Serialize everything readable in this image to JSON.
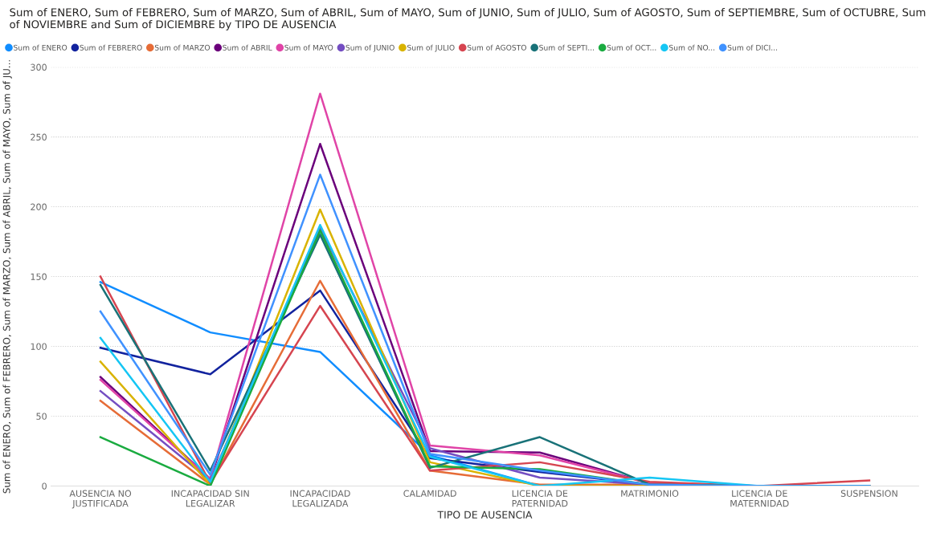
{
  "chart_data": {
    "type": "line",
    "title": "Sum of ENERO, Sum of FEBRERO, Sum of MARZO, Sum of ABRIL, Sum of MAYO, Sum of JUNIO, Sum of JULIO, Sum of AGOSTO, Sum of SEPTIEMBRE, Sum of OCTUBRE, Sum of NOVIEMBRE and Sum of DICIEMBRE by TIPO DE AUSENCIA",
    "xlabel": "TIPO DE AUSENCIA",
    "ylabel": "Sum of ENERO, Sum of FEBRERO, Sum of MARZO, Sum of ABRIL, Sum of MAYO, Sum of JU...",
    "categories": [
      "AUSENCIA NO\nJUSTIFICADA",
      "INCAPACIDAD SIN\nLEGALIZAR",
      "INCAPACIDAD\nLEGALIZADA",
      "CALAMIDAD",
      "LICENCIA DE\nPATERNIDAD",
      "MATRIMONIO",
      "LICENCIA DE\nMATERNIDAD",
      "SUSPENSION"
    ],
    "ylim": [
      0,
      300
    ],
    "yticks": [
      0,
      50,
      100,
      150,
      200,
      250,
      300
    ],
    "grid": "y",
    "legend": "top left",
    "marker": "none",
    "line_style": "solid",
    "series": [
      {
        "name": "Sum of ENERO",
        "color": "#118dff",
        "values": [
          146,
          110,
          96,
          22,
          0,
          1,
          0,
          0
        ]
      },
      {
        "name": "Sum of FEBRERO",
        "color": "#12239e",
        "values": [
          99,
          80,
          140,
          20,
          10,
          1,
          0,
          0
        ]
      },
      {
        "name": "Sum of MARZO",
        "color": "#e66c37",
        "values": [
          61,
          1,
          147,
          11,
          1,
          1,
          0,
          0
        ]
      },
      {
        "name": "Sum of ABRIL",
        "color": "#6b007b",
        "values": [
          78,
          5,
          245,
          25,
          24,
          2,
          0,
          0
        ]
      },
      {
        "name": "Sum of MAYO",
        "color": "#e044a7",
        "values": [
          76,
          5,
          281,
          29,
          22,
          2,
          0,
          0
        ]
      },
      {
        "name": "Sum of JUNIO",
        "color": "#744ec2",
        "values": [
          68,
          4,
          185,
          27,
          6,
          1,
          0,
          0
        ]
      },
      {
        "name": "Sum of JULIO",
        "color": "#d9b300",
        "values": [
          89,
          1,
          198,
          17,
          0,
          0,
          0,
          0
        ]
      },
      {
        "name": "Sum of AGOSTO",
        "color": "#d64550",
        "values": [
          150,
          2,
          129,
          11,
          17,
          3,
          0,
          4
        ]
      },
      {
        "name": "Sum of SEPTI...",
        "color": "#197278",
        "values": [
          144,
          11,
          180,
          13,
          35,
          1,
          0,
          0
        ]
      },
      {
        "name": "Sum of OCT...",
        "color": "#1aab40",
        "values": [
          35,
          0,
          183,
          14,
          12,
          1,
          0,
          0
        ]
      },
      {
        "name": "Sum of NO...",
        "color": "#15c6f4",
        "values": [
          106,
          3,
          187,
          21,
          0,
          6,
          0,
          0
        ]
      },
      {
        "name": "Sum of DICI...",
        "color": "#4092ff",
        "values": [
          125,
          8,
          223,
          23,
          11,
          1,
          0,
          0
        ]
      }
    ]
  }
}
